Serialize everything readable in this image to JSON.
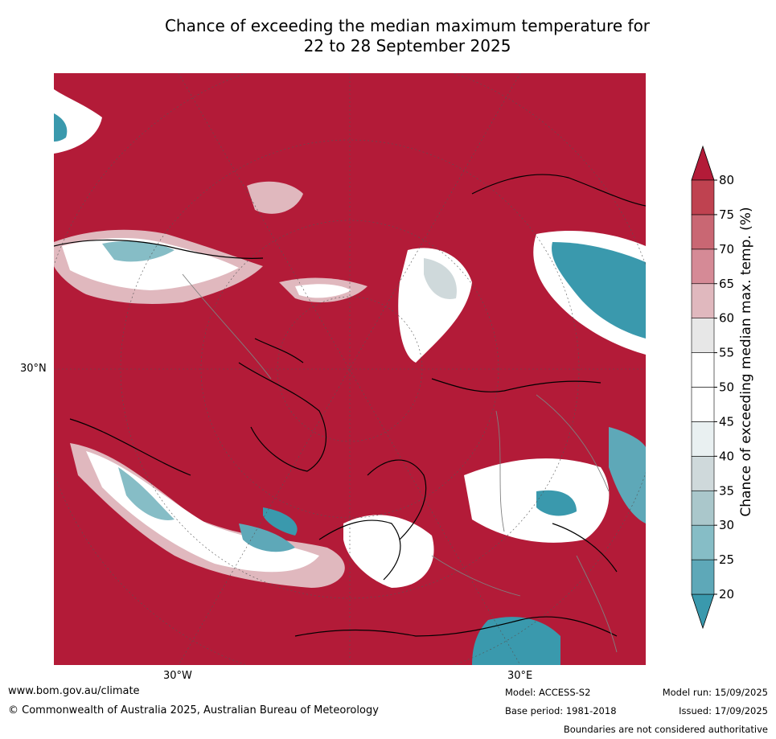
{
  "title_line1": "Chance of exceeding the median maximum temperature for",
  "title_line2": "22 to 28 September 2025",
  "map": {
    "projection": "north-polar",
    "lat_label": "30°N",
    "lon_labels": [
      "30°W",
      "30°E"
    ],
    "background_color": "#b31b38",
    "land_outline_color": "#000000",
    "boundary_color": "#808080"
  },
  "colorbar": {
    "label": "Chance of exceeding median max. temp. (%)",
    "ticks": [
      "20",
      "25",
      "30",
      "35",
      "40",
      "45",
      "50",
      "55",
      "60",
      "65",
      "70",
      "75",
      "80"
    ],
    "colors": [
      "#3a99ad",
      "#5ea8b8",
      "#86bdc6",
      "#aac7cb",
      "#cfd9db",
      "#e9f0f1",
      "#ffffff",
      "#ffffff",
      "#e7e7e7",
      "#e0b8be",
      "#d58a96",
      "#c96773",
      "#bf4250",
      "#b31b38"
    ],
    "extend": "both"
  },
  "footer": {
    "website": "www.bom.gov.au/climate",
    "copyright": "© Commonwealth of Australia 2025, Australian Bureau of Meteorology",
    "model": "Model: ACCESS-S2",
    "base_period": "Base period: 1981-2018",
    "model_run": "Model run: 15/09/2025",
    "issued": "Issued: 17/09/2025",
    "disclaimer": "Boundaries are not considered authoritative"
  }
}
